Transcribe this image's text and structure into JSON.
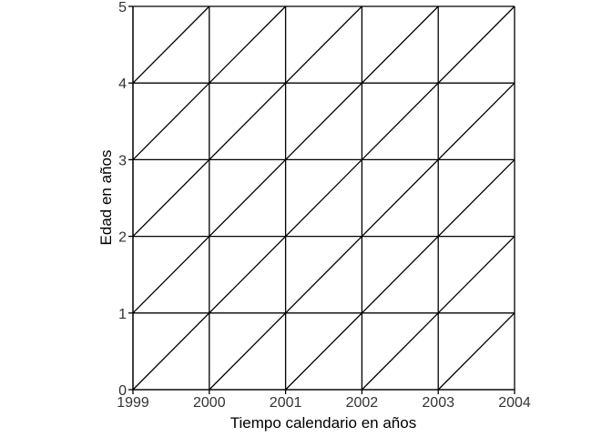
{
  "chart_data": {
    "type": "lexis-diagram",
    "xlabel": "Tiempo calendario en años",
    "ylabel": "Edad en años",
    "xlim": [
      1999,
      2004
    ],
    "ylim": [
      0,
      5
    ],
    "x_ticks": [
      1999,
      2000,
      2001,
      2002,
      2003,
      2004
    ],
    "y_ticks": [
      0,
      1,
      2,
      3,
      4,
      5
    ],
    "grid": true,
    "diagonal_step": 1,
    "colors": {
      "line": "#000000",
      "tick_text": "#333333"
    }
  }
}
